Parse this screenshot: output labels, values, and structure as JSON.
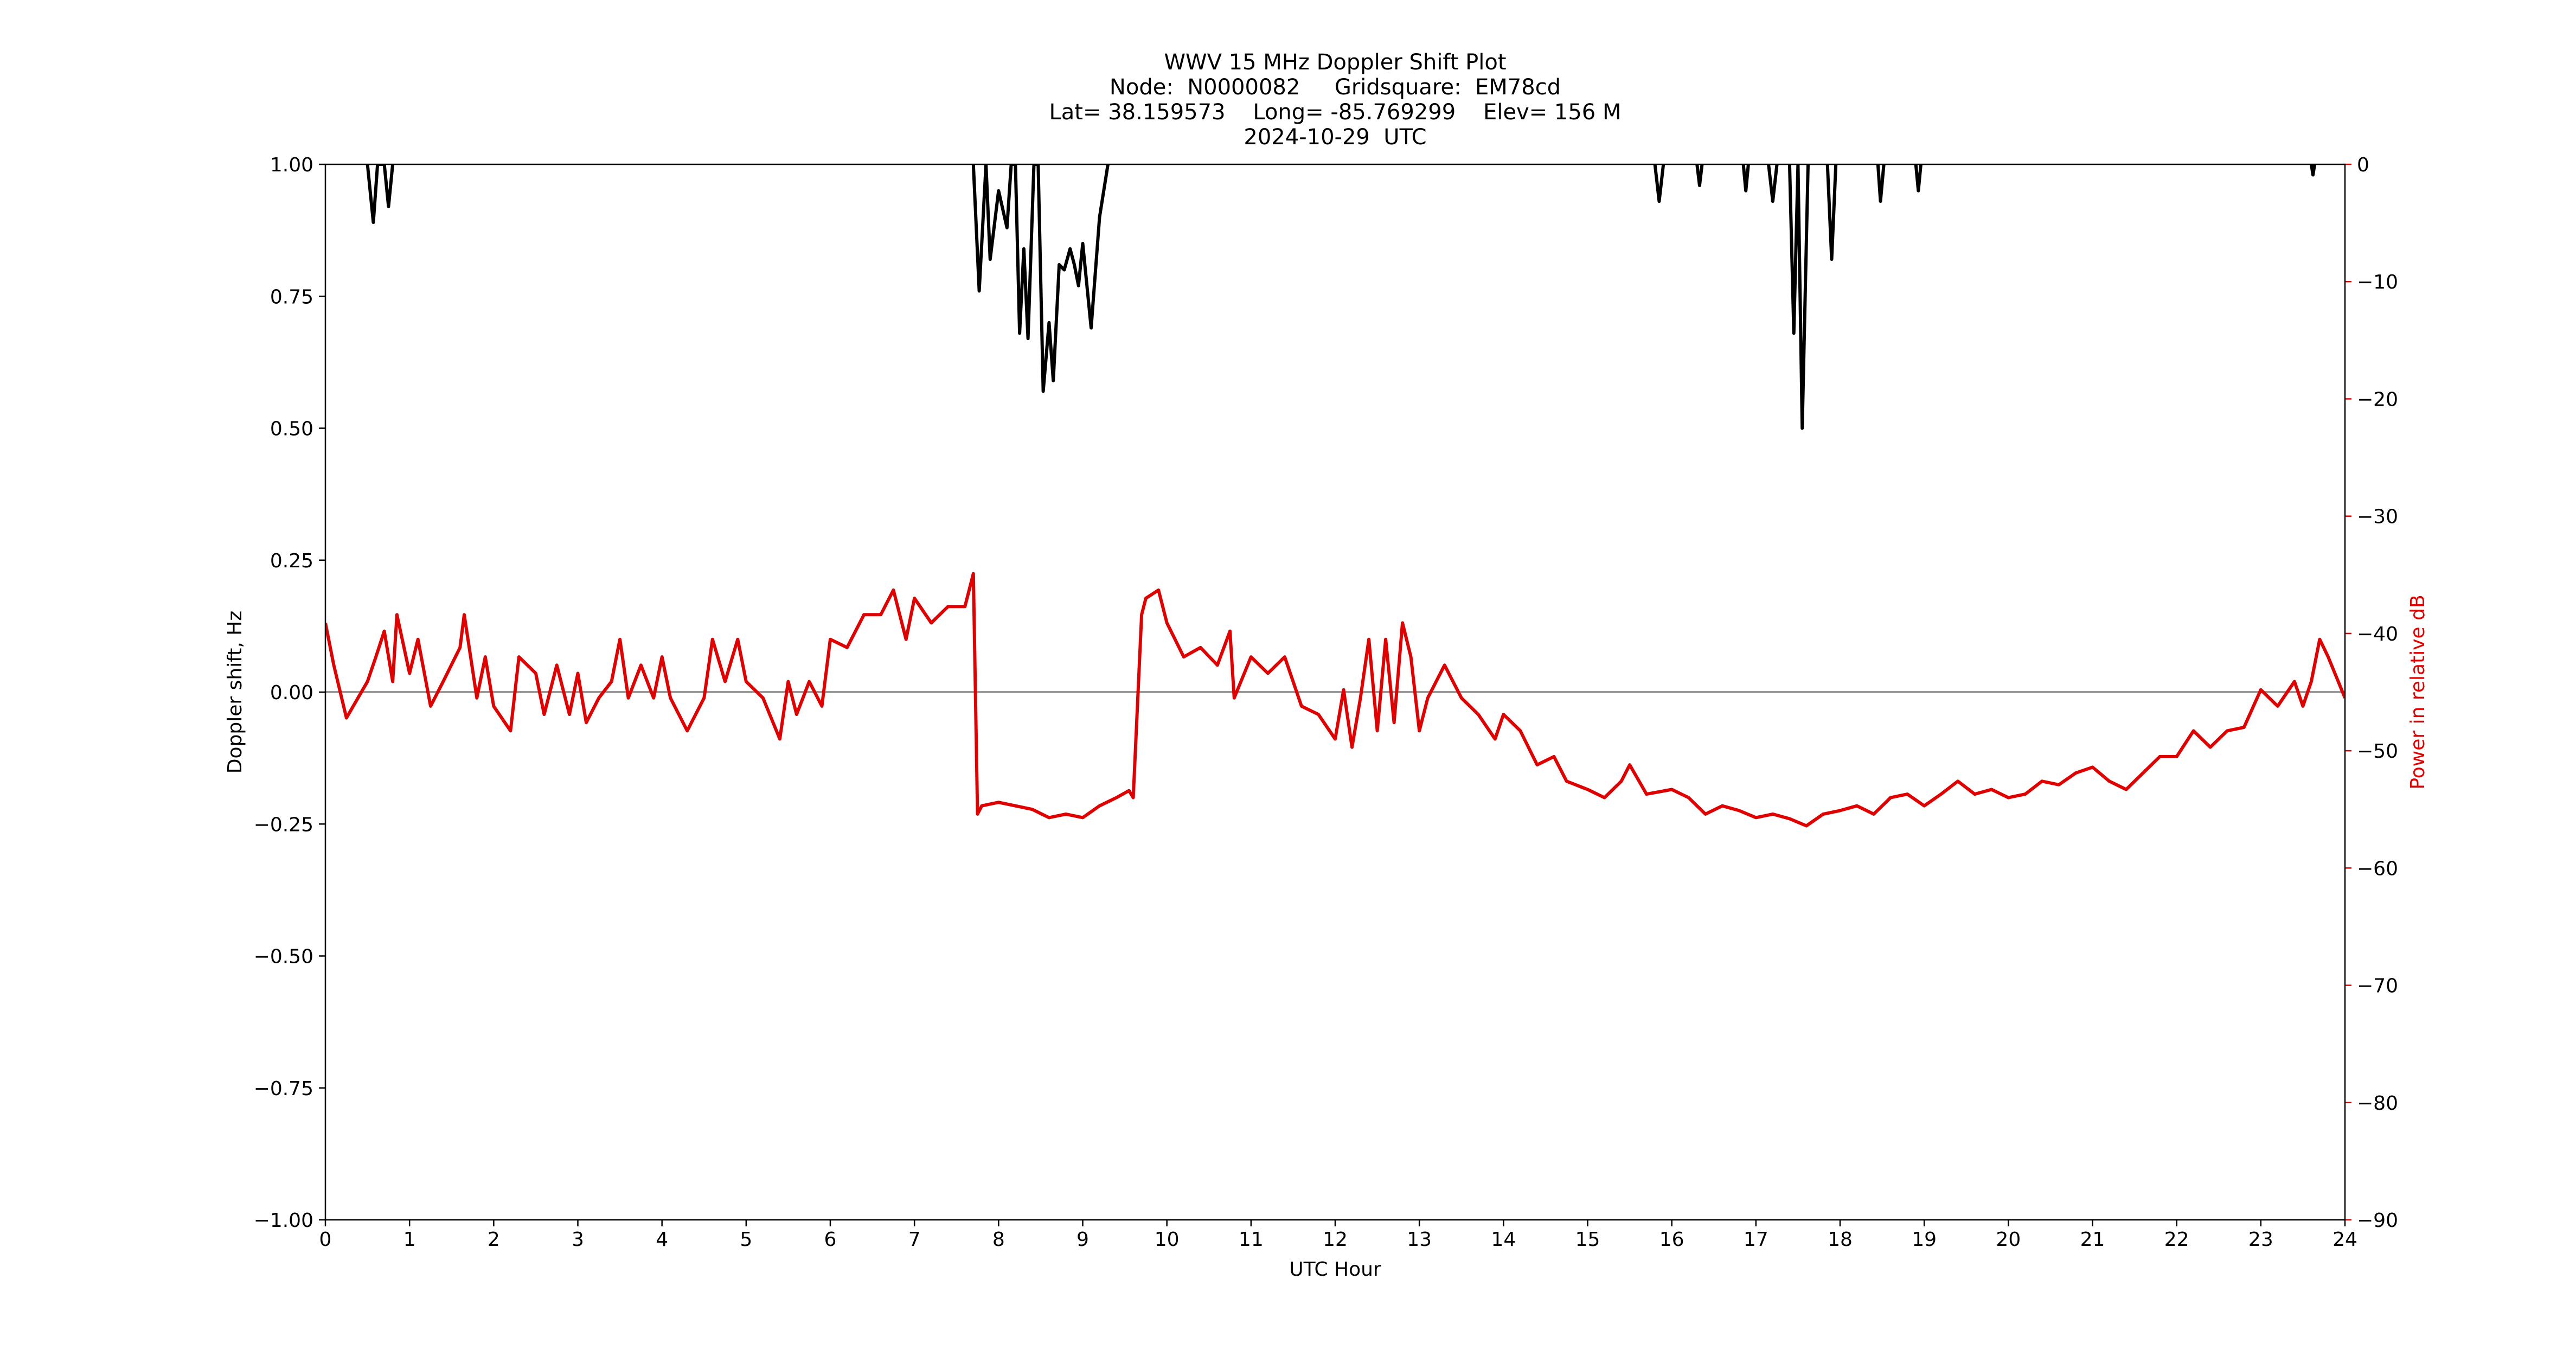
{
  "chart_data": {
    "type": "line",
    "title": [
      "WWV 15 MHz Doppler Shift Plot",
      "Node:  N0000082     Gridsquare:  EM78cd",
      "Lat= 38.159573    Long= -85.769299    Elev= 156 M",
      "2024-10-29  UTC"
    ],
    "xlabel": "UTC Hour",
    "ylabel": "Doppler shift, Hz",
    "y2label": "Power in relative dB",
    "xlim": [
      0,
      24
    ],
    "xticks": [
      0,
      1,
      2,
      3,
      4,
      5,
      6,
      7,
      8,
      9,
      10,
      11,
      12,
      13,
      14,
      15,
      16,
      17,
      18,
      19,
      20,
      21,
      22,
      23,
      24
    ],
    "ylim": [
      -1,
      1
    ],
    "yticks": [
      {
        "value": -1,
        "label": "−1.00"
      },
      {
        "value": -0.75,
        "label": "−0.75"
      },
      {
        "value": -0.5,
        "label": "−0.50"
      },
      {
        "value": -0.25,
        "label": "−0.25"
      },
      {
        "value": 0,
        "label": "0.00"
      },
      {
        "value": 0.25,
        "label": "0.25"
      },
      {
        "value": 0.5,
        "label": "0.50"
      },
      {
        "value": 0.75,
        "label": "0.75"
      },
      {
        "value": 1,
        "label": "1.00"
      }
    ],
    "y2lim": [
      -90,
      0
    ],
    "y2ticks": [
      {
        "value": -90,
        "label": "−90"
      },
      {
        "value": -80,
        "label": "−80"
      },
      {
        "value": -70,
        "label": "−70"
      },
      {
        "value": -60,
        "label": "−60"
      },
      {
        "value": -50,
        "label": "−50"
      },
      {
        "value": -40,
        "label": "−40"
      },
      {
        "value": -30,
        "label": "−30"
      },
      {
        "value": -20,
        "label": "−20"
      },
      {
        "value": -10,
        "label": "−10"
      },
      0
    ],
    "hline": 0,
    "hline_color": "#999999",
    "y2_color": "#e00000",
    "series": [
      {
        "color": "#000000",
        "x": [
          0.5,
          0.57,
          0.62,
          0.7,
          0.75,
          0.8,
          null,
          7.7,
          7.77,
          7.85,
          7.9,
          8.0,
          8.1,
          8.15,
          8.2,
          8.25,
          8.3,
          8.35,
          8.42,
          8.47,
          8.53,
          8.6,
          8.65,
          8.72,
          8.78,
          8.85,
          8.9,
          8.95,
          9.0,
          9.1,
          9.2,
          9.3,
          null,
          15.8,
          15.85,
          15.9,
          null,
          16.3,
          16.33,
          16.36,
          null,
          16.85,
          16.88,
          16.91,
          null,
          17.15,
          17.2,
          17.25,
          null,
          17.4,
          17.45,
          17.5,
          17.55,
          17.62,
          null,
          17.85,
          17.9,
          17.95,
          null,
          18.45,
          18.48,
          18.52,
          null,
          18.9,
          18.93,
          18.96,
          null,
          23.6,
          23.62,
          23.64
        ],
        "values": [
          1.0,
          0.89,
          1.0,
          1.0,
          0.92,
          1.0,
          null,
          1.0,
          0.76,
          1.0,
          0.82,
          0.95,
          0.88,
          1.0,
          1.0,
          0.68,
          0.84,
          0.67,
          1.0,
          1.0,
          0.57,
          0.7,
          0.59,
          0.81,
          0.8,
          0.84,
          0.81,
          0.77,
          0.85,
          0.69,
          0.9,
          1.0,
          null,
          1.0,
          0.93,
          1.0,
          null,
          1.0,
          0.96,
          1.0,
          null,
          1.0,
          0.95,
          1.0,
          null,
          1.0,
          0.93,
          1.0,
          null,
          1.0,
          0.68,
          1.0,
          0.5,
          1.0,
          null,
          1.0,
          0.82,
          1.0,
          null,
          1.0,
          0.93,
          1.0,
          null,
          1.0,
          0.95,
          1.0,
          null,
          1.0,
          0.98,
          1.0
        ]
      },
      {
        "color": "#e00000",
        "axis": "y2",
        "x": [
          0,
          0.1,
          0.25,
          0.5,
          0.6,
          0.7,
          0.8,
          0.85,
          1.0,
          1.1,
          1.25,
          1.4,
          1.6,
          1.65,
          1.8,
          1.9,
          2.0,
          2.2,
          2.3,
          2.5,
          2.6,
          2.75,
          2.9,
          3.0,
          3.1,
          3.25,
          3.4,
          3.5,
          3.6,
          3.75,
          3.9,
          4.0,
          4.1,
          4.3,
          4.5,
          4.6,
          4.75,
          4.9,
          5.0,
          5.2,
          5.4,
          5.5,
          5.6,
          5.75,
          5.9,
          6.0,
          6.2,
          6.4,
          6.6,
          6.75,
          6.9,
          7.0,
          7.2,
          7.4,
          7.6,
          7.7,
          7.75,
          7.8,
          8.0,
          8.2,
          8.4,
          8.6,
          8.8,
          9.0,
          9.2,
          9.4,
          9.55,
          9.6,
          9.7,
          9.75,
          9.9,
          10.0,
          10.2,
          10.4,
          10.6,
          10.75,
          10.8,
          11.0,
          11.2,
          11.4,
          11.5,
          11.6,
          11.8,
          12.0,
          12.1,
          12.2,
          12.3,
          12.4,
          12.5,
          12.6,
          12.7,
          12.8,
          12.9,
          13.0,
          13.1,
          13.3,
          13.5,
          13.7,
          13.9,
          14.0,
          14.2,
          14.4,
          14.6,
          14.75,
          15.0,
          15.2,
          15.4,
          15.5,
          15.7,
          16.0,
          16.2,
          16.4,
          16.6,
          16.8,
          17.0,
          17.2,
          17.4,
          17.6,
          17.8,
          18.0,
          18.2,
          18.4,
          18.6,
          18.8,
          19.0,
          19.2,
          19.4,
          19.6,
          19.8,
          20.0,
          20.2,
          20.4,
          20.6,
          20.8,
          21.0,
          21.2,
          21.4,
          21.6,
          21.8,
          22.0,
          22.2,
          22.4,
          22.6,
          22.8,
          23.0,
          23.2,
          23.4,
          23.5,
          23.6,
          23.7,
          23.8,
          24.0
        ],
        "values": [
          -39.1,
          -42.7,
          -47.2,
          -44.1,
          -42.0,
          -39.8,
          -44.1,
          -38.4,
          -43.4,
          -40.5,
          -46.2,
          -44.1,
          -41.2,
          -38.4,
          -45.5,
          -42.0,
          -46.2,
          -48.3,
          -42.0,
          -43.4,
          -46.9,
          -42.7,
          -46.9,
          -43.4,
          -47.6,
          -45.5,
          -44.1,
          -40.5,
          -45.5,
          -42.7,
          -45.5,
          -42.0,
          -45.5,
          -48.3,
          -45.5,
          -40.5,
          -44.1,
          -40.5,
          -44.1,
          -45.5,
          -49.0,
          -44.1,
          -46.9,
          -44.1,
          -46.2,
          -40.5,
          -41.2,
          -38.4,
          -38.4,
          -36.3,
          -40.5,
          -37.0,
          -39.1,
          -37.7,
          -37.7,
          -34.9,
          -55.4,
          -54.7,
          -54.4,
          -54.7,
          -55.0,
          -55.7,
          -55.4,
          -55.7,
          -54.7,
          -54.0,
          -53.4,
          -54.0,
          -38.4,
          -37.0,
          -36.3,
          -39.1,
          -42.0,
          -41.2,
          -42.7,
          -39.8,
          -45.5,
          -42.0,
          -43.4,
          -42.0,
          -44.1,
          -46.2,
          -46.9,
          -49.0,
          -44.8,
          -49.7,
          -45.5,
          -40.5,
          -48.3,
          -40.5,
          -47.6,
          -39.1,
          -42.0,
          -48.3,
          -45.5,
          -42.7,
          -45.5,
          -46.9,
          -49.0,
          -46.9,
          -48.3,
          -51.2,
          -50.5,
          -52.6,
          -53.3,
          -54.0,
          -52.6,
          -51.2,
          -53.7,
          -53.3,
          -54.0,
          -55.4,
          -54.7,
          -55.1,
          -55.7,
          -55.4,
          -55.8,
          -56.4,
          -55.4,
          -55.1,
          -54.7,
          -55.4,
          -54.0,
          -53.7,
          -54.7,
          -53.7,
          -52.6,
          -53.7,
          -53.3,
          -54.0,
          -53.7,
          -52.6,
          -52.9,
          -51.9,
          -51.4,
          -52.6,
          -53.3,
          -51.9,
          -50.5,
          -50.5,
          -48.3,
          -49.7,
          -48.3,
          -48.0,
          -44.8,
          -46.2,
          -44.1,
          -46.2,
          -44.1,
          -40.5,
          -42.0,
          -45.5
        ]
      }
    ]
  }
}
